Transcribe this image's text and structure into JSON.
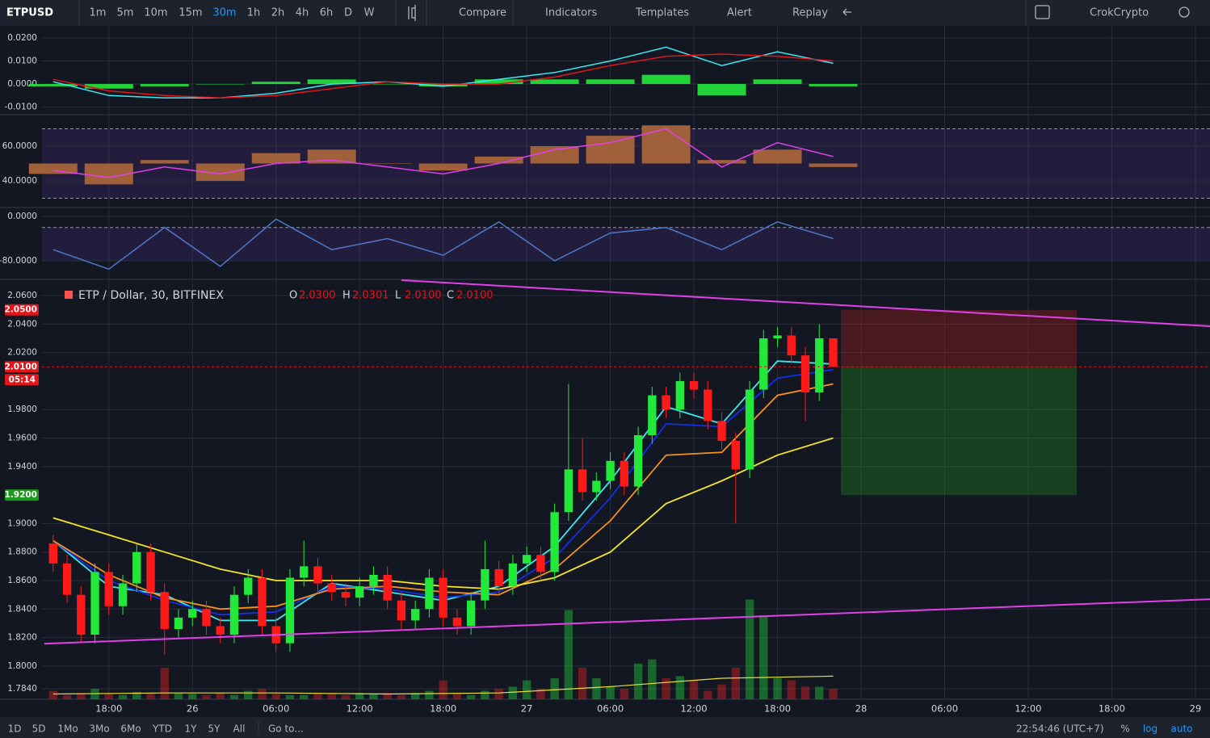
{
  "toolbar": {
    "symbol": "ETPUSD",
    "intervals": [
      "1m",
      "5m",
      "10m",
      "15m",
      "30m",
      "1h",
      "2h",
      "4h",
      "6h",
      "D",
      "W"
    ],
    "active_interval_index": 4,
    "buttons": [
      "Compare",
      "Indicators",
      "Templates",
      "Alert",
      "Replay"
    ],
    "account": "CrokCrypto"
  },
  "time_axis": {
    "xlim": [
      -4.8,
      79.05
    ],
    "xticks": [
      {
        "value": 0,
        "label": "18:00"
      },
      {
        "value": 6,
        "label": "26"
      },
      {
        "value": 12,
        "label": "06:00"
      },
      {
        "value": 18,
        "label": "12:00"
      },
      {
        "value": 24,
        "label": "18:00"
      },
      {
        "value": 30,
        "label": "27"
      },
      {
        "value": 36,
        "label": "06:00"
      },
      {
        "value": 42,
        "label": "12:00"
      },
      {
        "value": 48,
        "label": "18:00"
      },
      {
        "value": 54,
        "label": "28"
      },
      {
        "value": 60,
        "label": "06:00"
      },
      {
        "value": 66,
        "label": "12:00"
      },
      {
        "value": 72,
        "label": "18:00"
      },
      {
        "value": 78,
        "label": "29"
      }
    ]
  },
  "macd": {
    "ylim": [
      -0.0133,
      0.0235
    ],
    "yticks": [
      {
        "value": 0.02,
        "label": "0.0200"
      },
      {
        "value": 0.01,
        "label": "0.0100"
      },
      {
        "value": 0,
        "label": "0.0000"
      },
      {
        "value": -0.01,
        "label": "-0.0100"
      }
    ],
    "x": [
      -4,
      0,
      4,
      8,
      12,
      16,
      20,
      24,
      28,
      32,
      36,
      40,
      44,
      48,
      52
    ],
    "macd_line": {
      "color": "#3ee8f0",
      "values": [
        0.001,
        -0.005,
        -0.006,
        -0.006,
        -0.004,
        0.0,
        0.001,
        -0.001,
        0.002,
        0.005,
        0.01,
        0.016,
        0.008,
        0.014,
        0.009
      ]
    },
    "signal_line": {
      "color": "#e0161b",
      "values": [
        0.002,
        -0.003,
        -0.005,
        -0.006,
        -0.005,
        -0.002,
        0.001,
        0.0,
        0.0,
        0.003,
        0.008,
        0.012,
        0.013,
        0.012,
        0.01
      ]
    },
    "histogram": {
      "color": "#22e83a",
      "values": [
        -0.001,
        -0.002,
        -0.001,
        0.0,
        0.001,
        0.002,
        0.0,
        -0.001,
        0.002,
        0.002,
        0.002,
        0.004,
        -0.005,
        0.002,
        -0.001
      ]
    }
  },
  "rsi": {
    "ylim": [
      24.65,
      77.7
    ],
    "yticks": [
      {
        "value": 60,
        "label": "60.0000"
      },
      {
        "value": 40,
        "label": "40.0000"
      }
    ],
    "band": [
      30,
      70
    ],
    "base": 50,
    "x": [
      -4,
      0,
      4,
      8,
      12,
      16,
      20,
      24,
      28,
      32,
      36,
      40,
      44,
      48,
      52
    ],
    "line": {
      "color": "#e040e8",
      "values": [
        46,
        42,
        48,
        44,
        50,
        52,
        48,
        44,
        50,
        58,
        62,
        70,
        48,
        62,
        54
      ]
    },
    "bars": {
      "color": "#a0603a",
      "values": [
        44,
        38,
        52,
        40,
        56,
        58,
        50,
        46,
        54,
        60,
        66,
        72,
        52,
        58,
        48
      ]
    }
  },
  "williams": {
    "ylim": [
      -112,
      14.5
    ],
    "yticks": [
      {
        "value": 0,
        "label": "0.0000"
      },
      {
        "value": -80,
        "label": "-80.0000"
      }
    ],
    "band": [
      -80,
      -20
    ],
    "x": [
      -4,
      0,
      4,
      8,
      12,
      16,
      20,
      24,
      28,
      32,
      36,
      40,
      44,
      48,
      52
    ],
    "line": {
      "color": "#4f78c8",
      "values": [
        -60,
        -95,
        -20,
        -90,
        -5,
        -60,
        -40,
        -70,
        -10,
        -80,
        -30,
        -20,
        -60,
        -10,
        -40
      ]
    }
  },
  "main": {
    "legend": "ETP / Dollar, 30, BITFINEX",
    "ohlc": [
      {
        "key": "O",
        "value": "2.0300"
      },
      {
        "key": "H",
        "value": "2.0301"
      },
      {
        "key": "L",
        "value": "2.0100"
      },
      {
        "key": "C",
        "value": "2.0100"
      }
    ],
    "ylim": [
      1.7767,
      2.0708
    ],
    "yticks": [
      {
        "value": 2.06,
        "label": "2.0600"
      },
      {
        "value": 2.04,
        "label": "2.0400"
      },
      {
        "value": 2.02,
        "label": "2.0200"
      },
      {
        "value": 1.98,
        "label": "1.9800"
      },
      {
        "value": 1.96,
        "label": "1.9600"
      },
      {
        "value": 1.94,
        "label": "1.9400"
      },
      {
        "value": 1.9,
        "label": "1.9000"
      },
      {
        "value": 1.88,
        "label": "1.8800"
      },
      {
        "value": 1.86,
        "label": "1.8600"
      },
      {
        "value": 1.84,
        "label": "1.8400"
      },
      {
        "value": 1.82,
        "label": "1.8200"
      },
      {
        "value": 1.8,
        "label": "1.8000"
      },
      {
        "value": 1.784,
        "label": "1.7840"
      }
    ],
    "up_color": "#22e83a",
    "down_color": "#ff1a1a",
    "candles": {
      "x": [
        -4,
        -3,
        -2,
        -1,
        0,
        1,
        2,
        3,
        4,
        5,
        6,
        7,
        8,
        9,
        10,
        11,
        12,
        13,
        14,
        15,
        16,
        17,
        18,
        19,
        20,
        21,
        22,
        23,
        24,
        25,
        26,
        27,
        28,
        29,
        30,
        31,
        32,
        33,
        34,
        35,
        36,
        37,
        38,
        39,
        40,
        41,
        42,
        43,
        44,
        45,
        46,
        47,
        48,
        49,
        50,
        51,
        52
      ],
      "open": [
        1.886,
        1.872,
        1.85,
        1.822,
        1.866,
        1.842,
        1.858,
        1.88,
        1.852,
        1.826,
        1.834,
        1.84,
        1.828,
        1.822,
        1.85,
        1.862,
        1.828,
        1.816,
        1.862,
        1.87,
        1.858,
        1.852,
        1.848,
        1.856,
        1.864,
        1.846,
        1.832,
        1.84,
        1.862,
        1.834,
        1.828,
        1.846,
        1.868,
        1.856,
        1.872,
        1.878,
        1.866,
        1.908,
        1.938,
        1.922,
        1.93,
        1.944,
        1.926,
        1.962,
        1.99,
        1.98,
        2.0,
        1.994,
        1.972,
        1.958,
        1.938,
        1.994,
        2.03,
        2.032,
        2.018,
        1.992,
        2.03
      ],
      "high": [
        1.892,
        1.878,
        1.856,
        1.872,
        1.872,
        1.864,
        1.886,
        1.886,
        1.858,
        1.84,
        1.846,
        1.846,
        1.834,
        1.856,
        1.868,
        1.868,
        1.834,
        1.868,
        1.888,
        1.876,
        1.864,
        1.858,
        1.862,
        1.87,
        1.87,
        1.852,
        1.846,
        1.868,
        1.868,
        1.84,
        1.852,
        1.888,
        1.874,
        1.878,
        1.884,
        1.884,
        1.914,
        1.998,
        1.96,
        1.936,
        1.95,
        1.95,
        1.968,
        1.996,
        1.996,
        2.006,
        2.006,
        2.0,
        1.978,
        1.964,
        2.0,
        2.036,
        2.038,
        2.038,
        2.024,
        2.04,
        2.0301
      ],
      "low": [
        1.866,
        1.844,
        1.816,
        1.816,
        1.836,
        1.836,
        1.852,
        1.846,
        1.808,
        1.82,
        1.828,
        1.822,
        1.816,
        1.816,
        1.844,
        1.822,
        1.81,
        1.81,
        1.856,
        1.852,
        1.846,
        1.842,
        1.842,
        1.85,
        1.84,
        1.826,
        1.826,
        1.834,
        1.828,
        1.822,
        1.822,
        1.84,
        1.85,
        1.85,
        1.866,
        1.86,
        1.86,
        1.902,
        1.916,
        1.916,
        1.924,
        1.92,
        1.92,
        1.956,
        1.974,
        1.974,
        1.988,
        1.966,
        1.952,
        1.9,
        1.932,
        1.988,
        2.024,
        2.012,
        1.972,
        1.986,
        2.01
      ],
      "close": [
        1.872,
        1.85,
        1.822,
        1.866,
        1.842,
        1.858,
        1.88,
        1.852,
        1.826,
        1.834,
        1.84,
        1.828,
        1.822,
        1.85,
        1.862,
        1.828,
        1.816,
        1.862,
        1.87,
        1.858,
        1.852,
        1.848,
        1.856,
        1.864,
        1.846,
        1.832,
        1.84,
        1.862,
        1.834,
        1.828,
        1.846,
        1.868,
        1.856,
        1.872,
        1.878,
        1.866,
        1.908,
        1.938,
        1.922,
        1.93,
        1.944,
        1.926,
        1.962,
        1.99,
        1.98,
        2.0,
        1.994,
        1.972,
        1.958,
        1.938,
        1.994,
        2.03,
        2.032,
        2.018,
        1.992,
        2.03,
        2.01
      ],
      "volume": [
        8,
        4,
        6,
        10,
        5,
        4,
        7,
        6,
        30,
        6,
        5,
        4,
        6,
        4,
        8,
        10,
        5,
        4,
        4,
        6,
        5,
        4,
        6,
        5,
        6,
        4,
        6,
        8,
        18,
        6,
        4,
        8,
        10,
        12,
        18,
        10,
        20,
        85,
        30,
        20,
        12,
        10,
        34,
        38,
        20,
        22,
        18,
        8,
        14,
        30,
        95,
        80,
        20,
        18,
        12,
        12,
        10
      ]
    },
    "volume_lim": [
      0,
      100
    ],
    "volume_ma": {
      "color": "#e6e03a",
      "x": [
        -4,
        4,
        12,
        20,
        28,
        36,
        44,
        52
      ],
      "values": [
        5,
        6,
        6,
        5,
        6,
        12,
        20,
        22
      ]
    },
    "mas": [
      {
        "color": "#3ee8f0",
        "x": [
          -4,
          0,
          4,
          8,
          12,
          16,
          20,
          24,
          28,
          32,
          36,
          40,
          44,
          48,
          52
        ],
        "values": [
          1.888,
          1.856,
          1.85,
          1.832,
          1.832,
          1.858,
          1.852,
          1.846,
          1.856,
          1.884,
          1.93,
          1.982,
          1.97,
          2.014,
          2.012
        ]
      },
      {
        "color": "#1030e8",
        "x": [
          -4,
          0,
          4,
          8,
          12,
          16,
          20,
          24,
          28,
          32,
          36,
          40,
          44,
          48,
          52
        ],
        "values": [
          1.888,
          1.86,
          1.846,
          1.836,
          1.838,
          1.856,
          1.854,
          1.848,
          1.852,
          1.876,
          1.918,
          1.97,
          1.968,
          2.002,
          2.008
        ]
      },
      {
        "color": "#f5921e",
        "x": [
          -4,
          0,
          4,
          8,
          12,
          16,
          20,
          24,
          28,
          32,
          36,
          40,
          44,
          48,
          52
        ],
        "values": [
          1.888,
          1.864,
          1.848,
          1.84,
          1.842,
          1.854,
          1.856,
          1.852,
          1.85,
          1.868,
          1.902,
          1.948,
          1.95,
          1.99,
          1.998
        ]
      },
      {
        "color": "#f2e52a",
        "x": [
          -4,
          0,
          4,
          8,
          12,
          16,
          20,
          24,
          28,
          32,
          36,
          40,
          44,
          48,
          52
        ],
        "values": [
          1.904,
          1.892,
          1.88,
          1.868,
          1.86,
          1.86,
          1.86,
          1.856,
          1.854,
          1.862,
          1.88,
          1.914,
          1.93,
          1.948,
          1.96
        ]
      }
    ],
    "trendlines": [
      {
        "color": "#e040e8",
        "x": [
          21.0,
          79.05
        ],
        "values": [
          2.0708,
          2.0385
        ]
      },
      {
        "color": "#e040e8",
        "x": [
          -4.64,
          79.05
        ],
        "values": [
          1.8157,
          1.8469
        ]
      }
    ],
    "position": {
      "x": [
        52.55,
        69.49
      ],
      "stop": 2.05,
      "entry": 2.01,
      "target": 1.92
    },
    "price_labels": [
      {
        "value": 2.05,
        "label": "2.0500",
        "color": "#e0161b"
      },
      {
        "value": 2.01,
        "label": "2.0100",
        "color": "#e0161b"
      },
      {
        "value": 1.92,
        "label": "1.9200",
        "color": "#1a9a1a"
      }
    ],
    "countdown": "05:14"
  },
  "bottom_bar": {
    "ranges": [
      "1D",
      "5D",
      "1Mo",
      "3Mo",
      "6Mo",
      "YTD",
      "1Y",
      "5Y",
      "All"
    ],
    "goto": "Go to...",
    "clock": "22:54:46 (UTC+7)",
    "options": [
      "%",
      "log",
      "auto"
    ]
  }
}
